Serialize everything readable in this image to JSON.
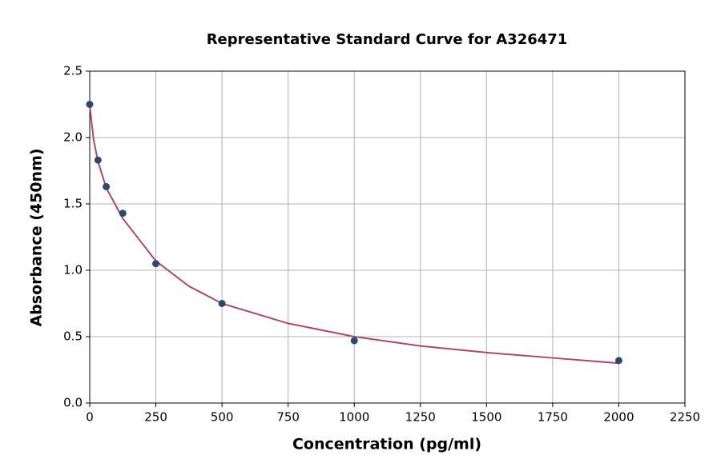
{
  "chart_data": {
    "type": "scatter",
    "title": "Representative Standard Curve for A326471",
    "xlabel": "Concentration (pg/ml)",
    "ylabel": "Absorbance (450nm)",
    "series": [
      {
        "type": "line",
        "color": "#b0476b",
        "x": [
          0,
          15,
          31.25,
          62.5,
          125,
          250,
          375,
          500,
          750,
          1000,
          1250,
          1500,
          1750,
          2000
        ],
        "values": [
          2.24,
          1.98,
          1.82,
          1.62,
          1.39,
          1.07,
          0.88,
          0.75,
          0.6,
          0.5,
          0.43,
          0.38,
          0.34,
          0.3
        ]
      },
      {
        "type": "scatter",
        "color": "#2b4a6f",
        "x": [
          0,
          31.25,
          62.5,
          125,
          250,
          500,
          1000,
          2000
        ],
        "values": [
          2.25,
          1.83,
          1.63,
          1.43,
          1.05,
          0.75,
          0.47,
          0.32
        ]
      }
    ],
    "xlim": [
      0,
      2250
    ],
    "xticks": [
      0,
      250,
      500,
      750,
      1000,
      1250,
      1500,
      1750,
      2000,
      2250
    ],
    "ylim": [
      0,
      2.5
    ],
    "yticks": [
      {
        "value": 0,
        "label": "0.0"
      },
      0.5,
      {
        "value": 1,
        "label": "1.0"
      },
      1.5,
      {
        "value": 2,
        "label": "2.0"
      },
      2.5
    ],
    "grid": true
  }
}
